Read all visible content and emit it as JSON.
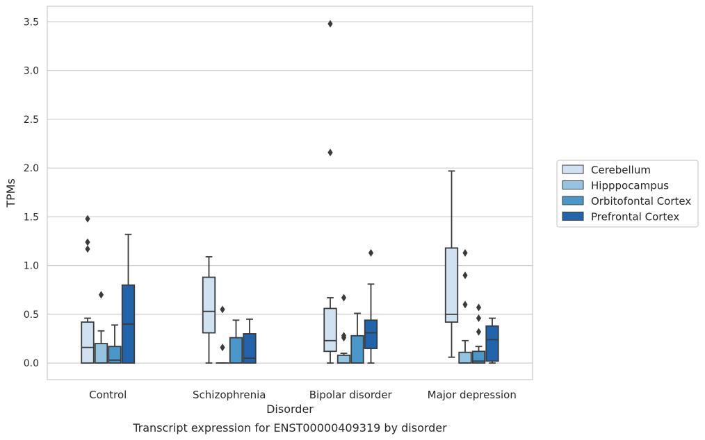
{
  "chart_data": {
    "type": "box",
    "title": "",
    "caption": "Transcript expression for ENST00000409319 by disorder",
    "xlabel": "Disorder",
    "ylabel": "TPMs",
    "ylim": [
      -0.17,
      3.66
    ],
    "yticks": [
      "0.0",
      "0.5",
      "1.0",
      "1.5",
      "2.0",
      "2.5",
      "3.0",
      "3.5"
    ],
    "categories": [
      "Control",
      "Schizophrenia",
      "Bipolar disorder",
      "Major depression"
    ],
    "grid": "horizontal",
    "legend_position": "right",
    "series": [
      {
        "name": "Cerebellum",
        "color": "#d0e1f2",
        "boxes": [
          {
            "q1": 0.0,
            "median": 0.16,
            "q3": 0.42,
            "whisker_low": 0.0,
            "whisker_high": 0.46,
            "outliers": [
              1.17,
              1.24,
              1.48
            ]
          },
          {
            "q1": 0.31,
            "median": 0.53,
            "q3": 0.88,
            "whisker_low": 0.0,
            "whisker_high": 1.09,
            "outliers": []
          },
          {
            "q1": 0.12,
            "median": 0.23,
            "q3": 0.56,
            "whisker_low": 0.0,
            "whisker_high": 0.67,
            "outliers": [
              2.16,
              3.48
            ]
          },
          {
            "q1": 0.42,
            "median": 0.5,
            "q3": 1.18,
            "whisker_low": 0.06,
            "whisker_high": 1.97,
            "outliers": []
          }
        ]
      },
      {
        "name": "Hipppocampus",
        "color": "#94c4df",
        "boxes": [
          {
            "q1": 0.0,
            "median": 0.0,
            "q3": 0.2,
            "whisker_low": 0.0,
            "whisker_high": 0.33,
            "outliers": [
              0.7
            ]
          },
          {
            "q1": 0.0,
            "median": 0.0,
            "q3": 0.0,
            "whisker_low": 0.0,
            "whisker_high": 0.0,
            "outliers": [
              0.16,
              0.55
            ]
          },
          {
            "q1": 0.0,
            "median": 0.0,
            "q3": 0.08,
            "whisker_low": 0.0,
            "whisker_high": 0.1,
            "outliers": [
              0.26,
              0.28,
              0.67
            ]
          },
          {
            "q1": 0.0,
            "median": 0.0,
            "q3": 0.11,
            "whisker_low": 0.0,
            "whisker_high": 0.23,
            "outliers": [
              0.6,
              0.9,
              1.13
            ]
          }
        ]
      },
      {
        "name": "Orbitofontal Cortex",
        "color": "#4a98c9",
        "boxes": [
          {
            "q1": 0.0,
            "median": 0.03,
            "q3": 0.17,
            "whisker_low": 0.0,
            "whisker_high": 0.39,
            "outliers": []
          },
          {
            "q1": 0.0,
            "median": 0.0,
            "q3": 0.26,
            "whisker_low": 0.0,
            "whisker_high": 0.44,
            "outliers": []
          },
          {
            "q1": 0.0,
            "median": 0.0,
            "q3": 0.28,
            "whisker_low": 0.0,
            "whisker_high": 0.51,
            "outliers": []
          },
          {
            "q1": 0.0,
            "median": 0.02,
            "q3": 0.12,
            "whisker_low": 0.0,
            "whisker_high": 0.17,
            "outliers": [
              0.32,
              0.46,
              0.57
            ]
          }
        ]
      },
      {
        "name": "Prefrontal Cortex",
        "color": "#2164ab",
        "boxes": [
          {
            "q1": 0.0,
            "median": 0.4,
            "q3": 0.8,
            "whisker_low": 0.0,
            "whisker_high": 1.32,
            "outliers": []
          },
          {
            "q1": 0.0,
            "median": 0.05,
            "q3": 0.3,
            "whisker_low": 0.0,
            "whisker_high": 0.45,
            "outliers": []
          },
          {
            "q1": 0.15,
            "median": 0.31,
            "q3": 0.44,
            "whisker_low": 0.0,
            "whisker_high": 0.81,
            "outliers": [
              1.13
            ]
          },
          {
            "q1": 0.02,
            "median": 0.24,
            "q3": 0.38,
            "whisker_low": 0.0,
            "whisker_high": 0.46,
            "outliers": []
          }
        ]
      }
    ]
  }
}
